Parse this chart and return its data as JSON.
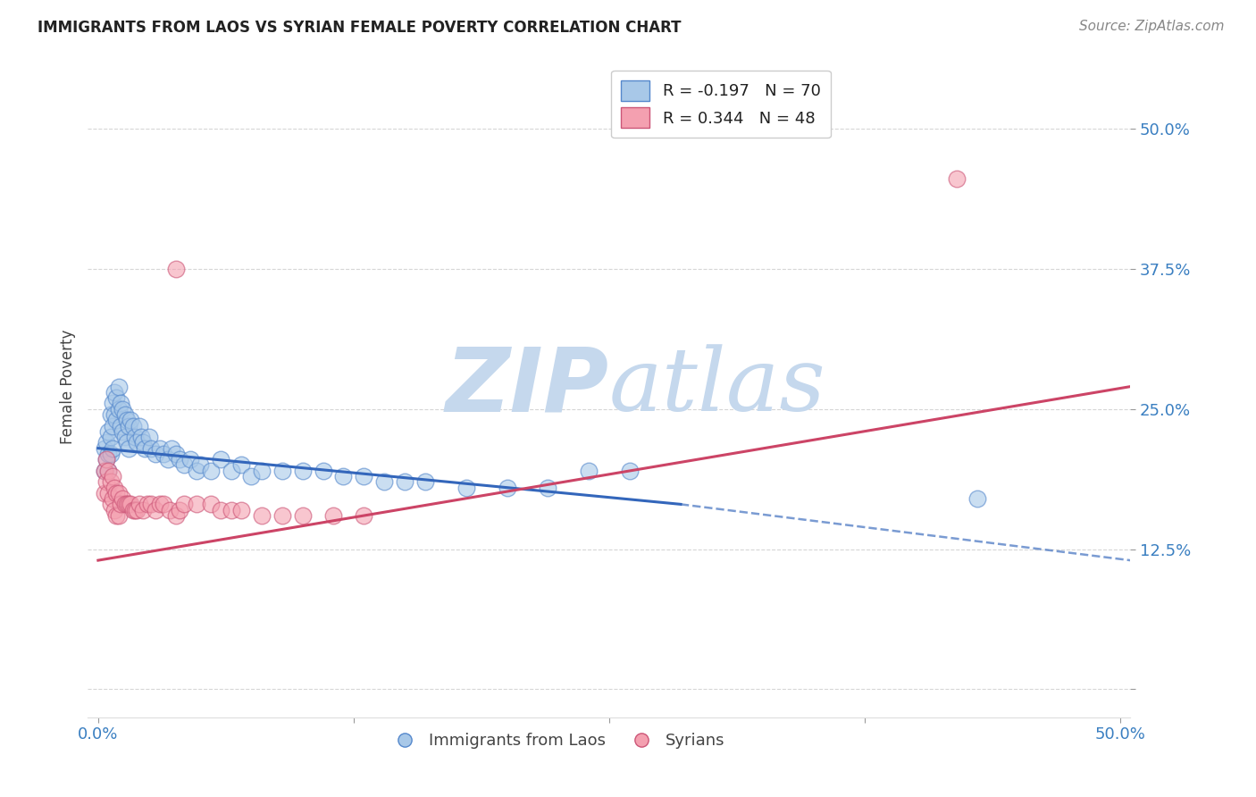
{
  "title": "IMMIGRANTS FROM LAOS VS SYRIAN FEMALE POVERTY CORRELATION CHART",
  "source": "Source: ZipAtlas.com",
  "ylabel": "Female Poverty",
  "y_ticks": [
    0.0,
    0.125,
    0.25,
    0.375,
    0.5
  ],
  "y_tick_labels": [
    "",
    "12.5%",
    "25.0%",
    "37.5%",
    "50.0%"
  ],
  "x_ticks": [
    0.0,
    0.125,
    0.25,
    0.375,
    0.5
  ],
  "x_tick_labels": [
    "0.0%",
    "",
    "",
    "",
    "50.0%"
  ],
  "xlim": [
    -0.005,
    0.505
  ],
  "ylim": [
    -0.025,
    0.565
  ],
  "blue_R": "-0.197",
  "blue_N": "70",
  "pink_R": "0.344",
  "pink_N": "48",
  "blue_fill_color": "#a8c8e8",
  "pink_fill_color": "#f4a0b0",
  "blue_edge_color": "#5588cc",
  "pink_edge_color": "#cc5577",
  "blue_line_color": "#3366bb",
  "pink_line_color": "#cc4466",
  "blue_scatter": [
    [
      0.003,
      0.215
    ],
    [
      0.003,
      0.195
    ],
    [
      0.004,
      0.22
    ],
    [
      0.004,
      0.205
    ],
    [
      0.005,
      0.23
    ],
    [
      0.005,
      0.21
    ],
    [
      0.005,
      0.195
    ],
    [
      0.006,
      0.245
    ],
    [
      0.006,
      0.225
    ],
    [
      0.006,
      0.21
    ],
    [
      0.007,
      0.255
    ],
    [
      0.007,
      0.235
    ],
    [
      0.007,
      0.215
    ],
    [
      0.008,
      0.265
    ],
    [
      0.008,
      0.245
    ],
    [
      0.009,
      0.26
    ],
    [
      0.009,
      0.24
    ],
    [
      0.01,
      0.27
    ],
    [
      0.01,
      0.25
    ],
    [
      0.011,
      0.255
    ],
    [
      0.011,
      0.235
    ],
    [
      0.012,
      0.25
    ],
    [
      0.012,
      0.23
    ],
    [
      0.013,
      0.245
    ],
    [
      0.013,
      0.225
    ],
    [
      0.014,
      0.24
    ],
    [
      0.014,
      0.22
    ],
    [
      0.015,
      0.235
    ],
    [
      0.015,
      0.215
    ],
    [
      0.016,
      0.24
    ],
    [
      0.017,
      0.235
    ],
    [
      0.018,
      0.225
    ],
    [
      0.019,
      0.22
    ],
    [
      0.02,
      0.235
    ],
    [
      0.021,
      0.225
    ],
    [
      0.022,
      0.22
    ],
    [
      0.023,
      0.215
    ],
    [
      0.025,
      0.225
    ],
    [
      0.026,
      0.215
    ],
    [
      0.028,
      0.21
    ],
    [
      0.03,
      0.215
    ],
    [
      0.032,
      0.21
    ],
    [
      0.034,
      0.205
    ],
    [
      0.036,
      0.215
    ],
    [
      0.038,
      0.21
    ],
    [
      0.04,
      0.205
    ],
    [
      0.042,
      0.2
    ],
    [
      0.045,
      0.205
    ],
    [
      0.048,
      0.195
    ],
    [
      0.05,
      0.2
    ],
    [
      0.055,
      0.195
    ],
    [
      0.06,
      0.205
    ],
    [
      0.065,
      0.195
    ],
    [
      0.07,
      0.2
    ],
    [
      0.075,
      0.19
    ],
    [
      0.08,
      0.195
    ],
    [
      0.09,
      0.195
    ],
    [
      0.1,
      0.195
    ],
    [
      0.11,
      0.195
    ],
    [
      0.12,
      0.19
    ],
    [
      0.13,
      0.19
    ],
    [
      0.14,
      0.185
    ],
    [
      0.15,
      0.185
    ],
    [
      0.16,
      0.185
    ],
    [
      0.18,
      0.18
    ],
    [
      0.2,
      0.18
    ],
    [
      0.22,
      0.18
    ],
    [
      0.24,
      0.195
    ],
    [
      0.26,
      0.195
    ],
    [
      0.43,
      0.17
    ]
  ],
  "pink_scatter": [
    [
      0.003,
      0.195
    ],
    [
      0.003,
      0.175
    ],
    [
      0.004,
      0.205
    ],
    [
      0.004,
      0.185
    ],
    [
      0.005,
      0.195
    ],
    [
      0.005,
      0.175
    ],
    [
      0.006,
      0.185
    ],
    [
      0.006,
      0.165
    ],
    [
      0.007,
      0.19
    ],
    [
      0.007,
      0.17
    ],
    [
      0.008,
      0.18
    ],
    [
      0.008,
      0.16
    ],
    [
      0.009,
      0.175
    ],
    [
      0.009,
      0.155
    ],
    [
      0.01,
      0.175
    ],
    [
      0.01,
      0.155
    ],
    [
      0.011,
      0.165
    ],
    [
      0.012,
      0.17
    ],
    [
      0.013,
      0.165
    ],
    [
      0.014,
      0.165
    ],
    [
      0.015,
      0.165
    ],
    [
      0.016,
      0.165
    ],
    [
      0.017,
      0.16
    ],
    [
      0.018,
      0.16
    ],
    [
      0.019,
      0.16
    ],
    [
      0.02,
      0.165
    ],
    [
      0.022,
      0.16
    ],
    [
      0.024,
      0.165
    ],
    [
      0.026,
      0.165
    ],
    [
      0.028,
      0.16
    ],
    [
      0.03,
      0.165
    ],
    [
      0.032,
      0.165
    ],
    [
      0.035,
      0.16
    ],
    [
      0.038,
      0.155
    ],
    [
      0.04,
      0.16
    ],
    [
      0.042,
      0.165
    ],
    [
      0.048,
      0.165
    ],
    [
      0.055,
      0.165
    ],
    [
      0.06,
      0.16
    ],
    [
      0.065,
      0.16
    ],
    [
      0.07,
      0.16
    ],
    [
      0.08,
      0.155
    ],
    [
      0.09,
      0.155
    ],
    [
      0.1,
      0.155
    ],
    [
      0.115,
      0.155
    ],
    [
      0.13,
      0.155
    ],
    [
      0.038,
      0.375
    ],
    [
      0.42,
      0.455
    ]
  ],
  "blue_trend_solid": {
    "x_start": 0.0,
    "y_start": 0.215,
    "x_end": 0.285,
    "y_end": 0.165
  },
  "blue_trend_dash": {
    "x_start": 0.285,
    "y_start": 0.165,
    "x_end": 0.505,
    "y_end": 0.115
  },
  "pink_trend": {
    "x_start": 0.0,
    "y_start": 0.115,
    "x_end": 0.505,
    "y_end": 0.27
  },
  "watermark_zip": "ZIP",
  "watermark_atlas": "atlas",
  "watermark_color": "#c5d8ed",
  "background_color": "#ffffff",
  "grid_color": "#cccccc",
  "legend_top_labels": [
    "R = -0.197   N = 70",
    "R = 0.344   N = 48"
  ],
  "legend_bottom_labels": [
    "Immigrants from Laos",
    "Syrians"
  ],
  "text_color": "#3a7fc1"
}
